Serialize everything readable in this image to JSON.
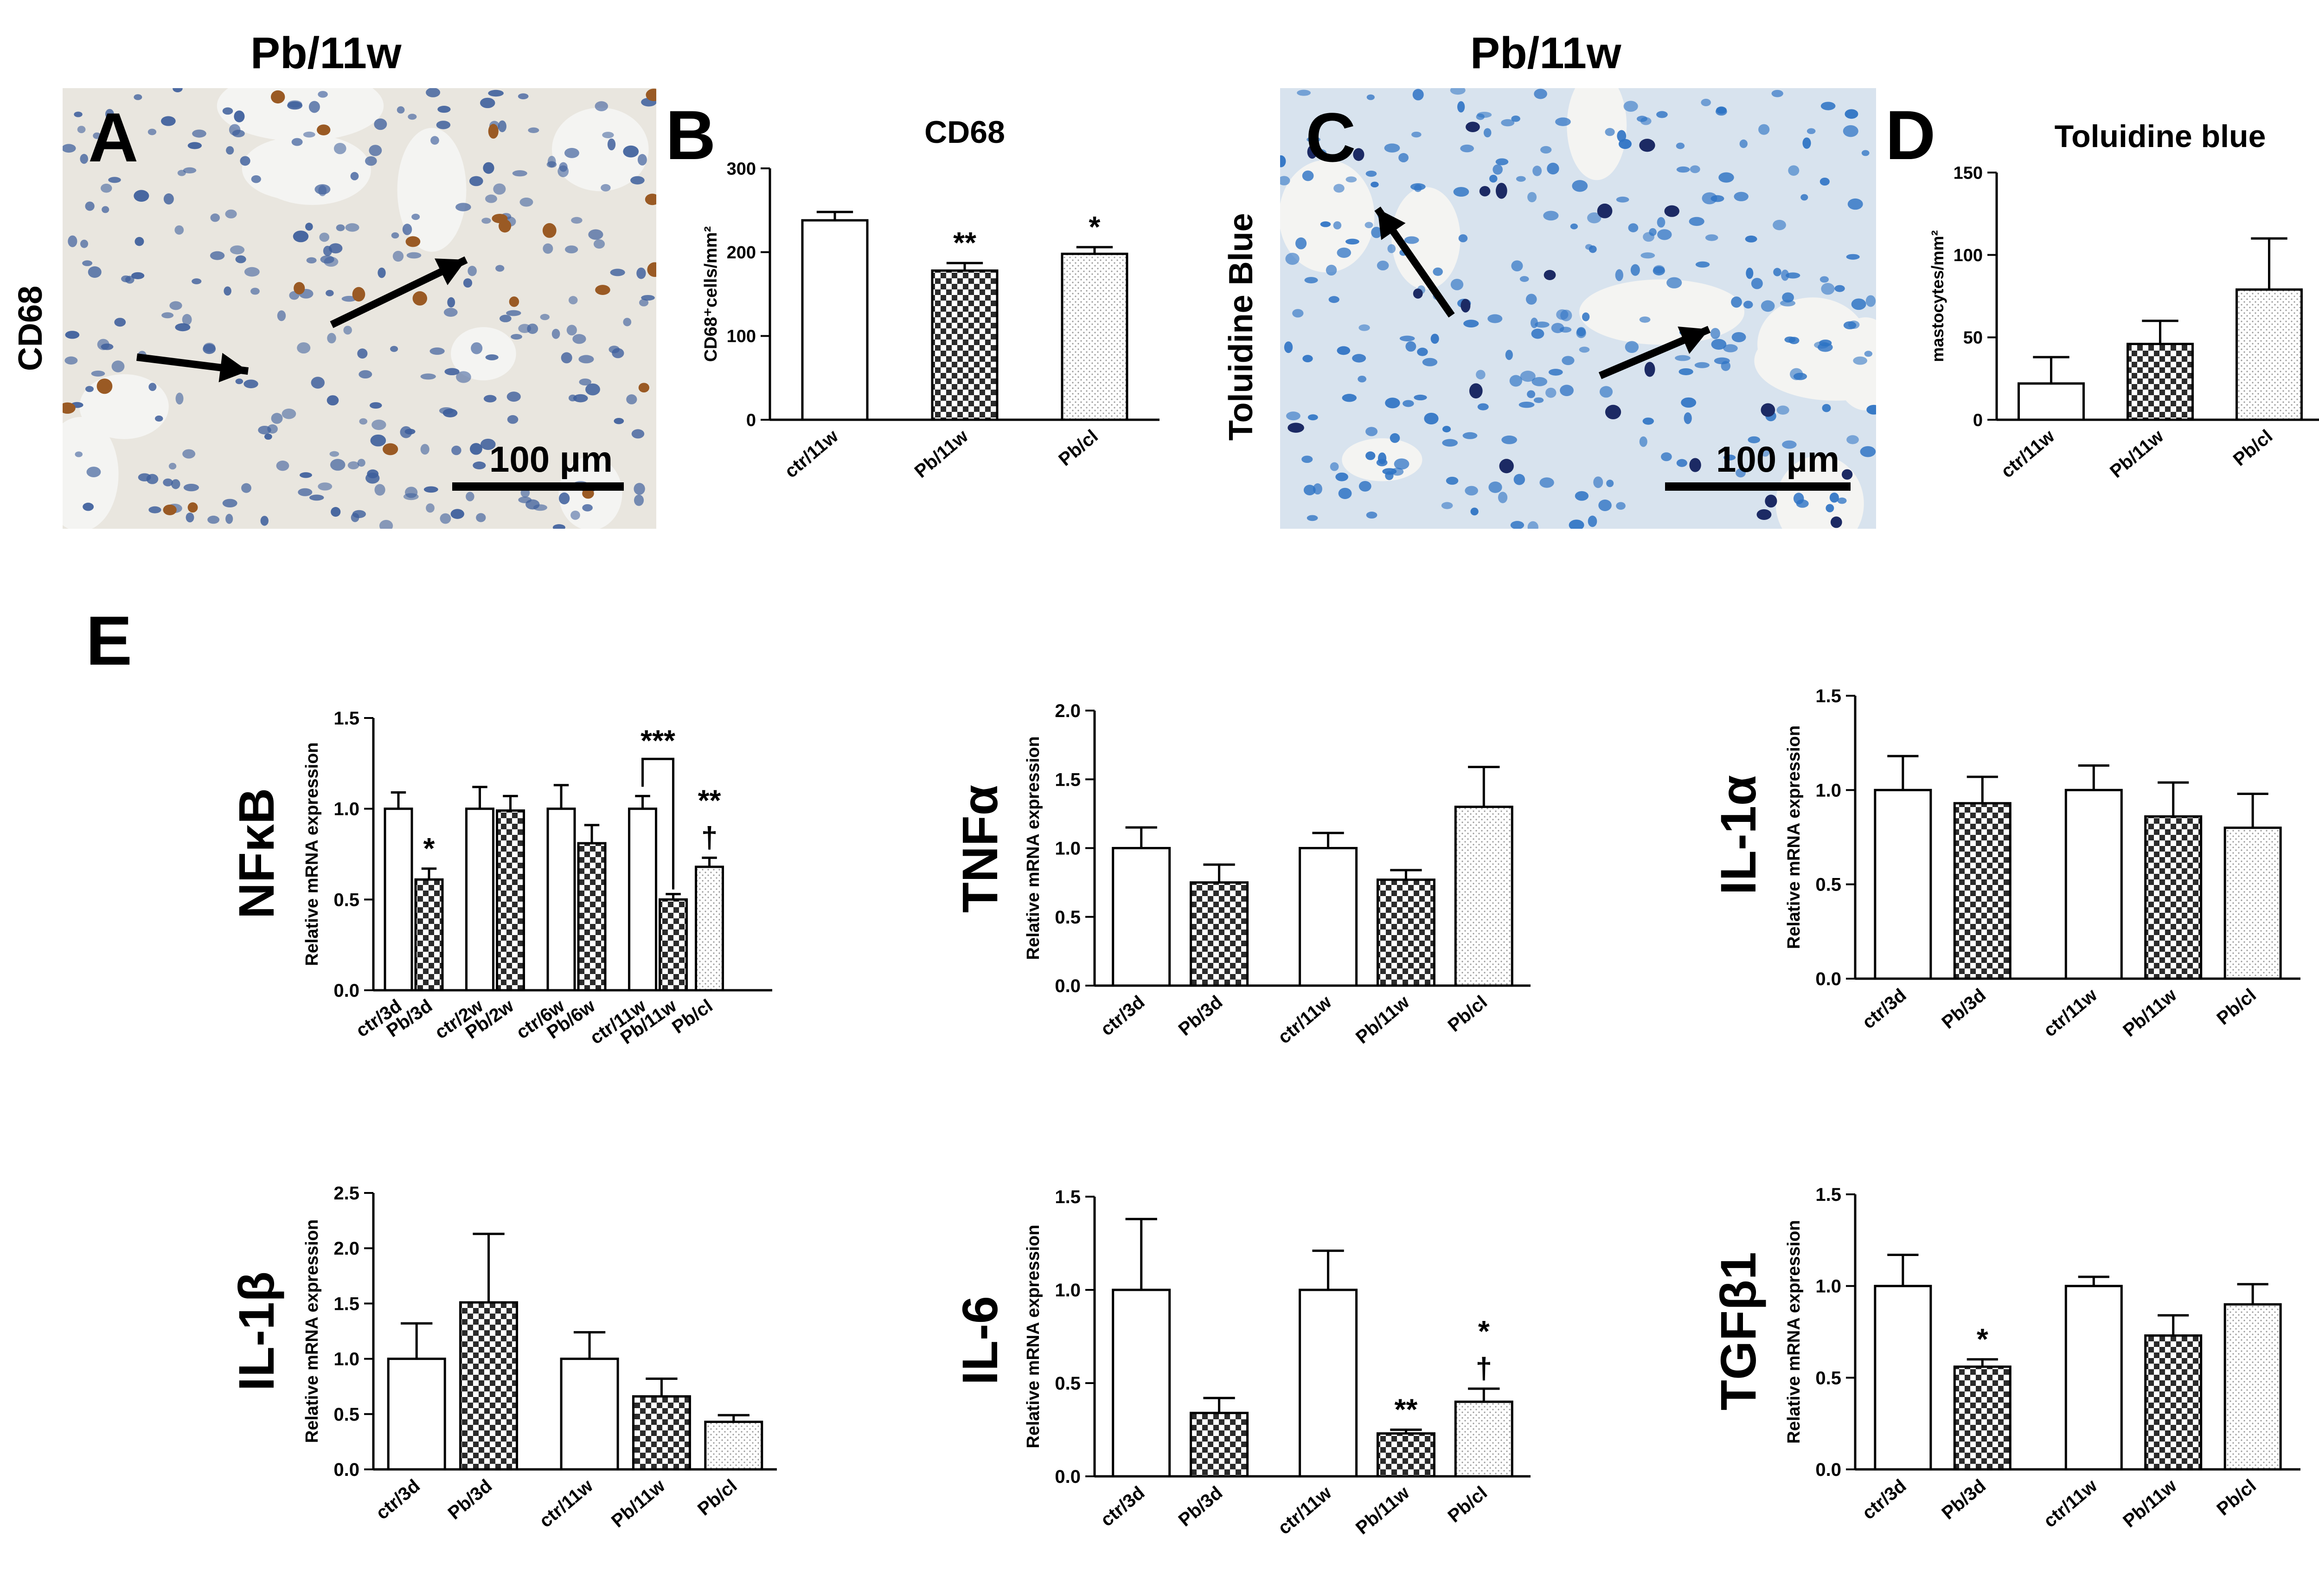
{
  "figure": {
    "title_left": "Pb/11w",
    "title_right": "Pb/11w",
    "panel_letters": {
      "A": "A",
      "B": "B",
      "C": "C",
      "D": "D",
      "E": "E"
    },
    "micro_A": {
      "side_label": "CD68",
      "scale_label": "100 µm",
      "stain_bg": "#e9e6df",
      "nuclei": "#3e5f9c",
      "stained": "#9a5a24"
    },
    "micro_C": {
      "side_label": "Toluidine Blue",
      "scale_label": "100 µm",
      "stain_bg": "#d8e3ee",
      "nuclei": "#2e73c4",
      "stained": "#1c2a64"
    }
  },
  "colors": {
    "axis": "#000000",
    "open": "#ffffff",
    "check": "#2b2b2b",
    "dot": "#9a9a9a"
  },
  "chart_data": [
    {
      "id": "B",
      "type": "bar",
      "title": "CD68",
      "ylabel": "CD68⁺cells/mm²",
      "ylim": [
        0,
        300
      ],
      "yticks": [
        0,
        100,
        200,
        300
      ],
      "tick_labels": [
        "0",
        "100",
        "200",
        "300"
      ],
      "categories": [
        "ctr/11w",
        "Pb/11w",
        "Pb/cl"
      ],
      "values": [
        238,
        178,
        198
      ],
      "errors": [
        10,
        9,
        8
      ],
      "patterns": [
        "open",
        "check",
        "dot"
      ],
      "annotations": [
        {
          "bar": 1,
          "text": "**"
        },
        {
          "bar": 2,
          "text": "*"
        }
      ]
    },
    {
      "id": "D",
      "type": "bar",
      "title": "Toluidine blue",
      "ylabel": "mastocytes/mm²",
      "ylim": [
        0,
        150
      ],
      "yticks": [
        0,
        50,
        100,
        150
      ],
      "tick_labels": [
        "0",
        "50",
        "100",
        "150"
      ],
      "categories": [
        "ctr/11w",
        "Pb/11w",
        "Pb/cl"
      ],
      "values": [
        22,
        46,
        79
      ],
      "errors": [
        16,
        14,
        31
      ],
      "patterns": [
        "open",
        "check",
        "dot"
      ],
      "annotations": []
    },
    {
      "id": "NFkB",
      "type": "bar",
      "gene": "NFκB",
      "ylabel": "Relative mRNA expression",
      "ylim": [
        0,
        1.5
      ],
      "yticks": [
        0,
        0.5,
        1,
        1.5
      ],
      "tick_labels": [
        "0.0",
        "0.5",
        "1.0",
        "1.5"
      ],
      "categories": [
        "ctr/3d",
        "Pb/3d",
        "ctr/2w",
        "Pb/2w",
        "ctr/6w",
        "Pb/6w",
        "ctr/11w",
        "Pb/11w",
        "Pb/cl"
      ],
      "values": [
        1.0,
        0.61,
        1.0,
        0.99,
        1.0,
        0.81,
        1.0,
        0.5,
        0.68
      ],
      "errors": [
        0.09,
        0.06,
        0.12,
        0.08,
        0.13,
        0.1,
        0.07,
        0.03,
        0.05
      ],
      "patterns": [
        "open",
        "check",
        "open",
        "check",
        "open",
        "check",
        "open",
        "check",
        "dot"
      ],
      "annotations": [
        {
          "bar": 1,
          "text": "*"
        },
        {
          "bar": 8,
          "text": "†"
        },
        {
          "bar": 8,
          "text": "**"
        }
      ],
      "brackets": [
        {
          "from": 6,
          "to": 7,
          "text": "***"
        }
      ]
    },
    {
      "id": "TNFa",
      "type": "bar",
      "gene": "TNFα",
      "ylabel": "Relative mRNA expression",
      "ylim": [
        0,
        2.0
      ],
      "yticks": [
        0,
        0.5,
        1,
        1.5,
        2
      ],
      "tick_labels": [
        "0.0",
        "0.5",
        "1.0",
        "1.5",
        "2.0"
      ],
      "categories": [
        "ctr/3d",
        "Pb/3d",
        "ctr/11w",
        "Pb/11w",
        "Pb/cl"
      ],
      "values": [
        1.0,
        0.75,
        1.0,
        0.77,
        1.3
      ],
      "errors": [
        0.15,
        0.13,
        0.11,
        0.07,
        0.29
      ],
      "patterns": [
        "open",
        "check",
        "open",
        "check",
        "dot"
      ],
      "annotations": []
    },
    {
      "id": "IL1a",
      "type": "bar",
      "gene": "IL-1α",
      "ylabel": "Relative mRNA expression",
      "ylim": [
        0,
        1.5
      ],
      "yticks": [
        0,
        0.5,
        1,
        1.5
      ],
      "tick_labels": [
        "0.0",
        "0.5",
        "1.0",
        "1.5"
      ],
      "categories": [
        "ctr/3d",
        "Pb/3d",
        "ctr/11w",
        "Pb/11w",
        "Pb/cl"
      ],
      "values": [
        1.0,
        0.93,
        1.0,
        0.86,
        0.8
      ],
      "errors": [
        0.18,
        0.14,
        0.13,
        0.18,
        0.18
      ],
      "patterns": [
        "open",
        "check",
        "open",
        "check",
        "dot"
      ],
      "annotations": []
    },
    {
      "id": "IL1b",
      "type": "bar",
      "gene": "IL-1β",
      "ylabel": "Relative mRNA expression",
      "ylim": [
        0,
        2.5
      ],
      "yticks": [
        0,
        0.5,
        1,
        1.5,
        2,
        2.5
      ],
      "tick_labels": [
        "0.0",
        "0.5",
        "1.0",
        "1.5",
        "2.0",
        "2.5"
      ],
      "categories": [
        "ctr/3d",
        "Pb/3d",
        "ctr/11w",
        "Pb/11w",
        "Pb/cl"
      ],
      "values": [
        1.0,
        1.51,
        1.0,
        0.66,
        0.43
      ],
      "errors": [
        0.32,
        0.62,
        0.24,
        0.16,
        0.06
      ],
      "patterns": [
        "open",
        "check",
        "open",
        "check",
        "dot"
      ],
      "annotations": []
    },
    {
      "id": "IL6",
      "type": "bar",
      "gene": "IL-6",
      "ylabel": "Relative mRNA expression",
      "ylim": [
        0,
        1.5
      ],
      "yticks": [
        0,
        0.5,
        1,
        1.5
      ],
      "tick_labels": [
        "0.0",
        "0.5",
        "1.0",
        "1.5"
      ],
      "categories": [
        "ctr/3d",
        "Pb/3d",
        "ctr/11w",
        "Pb/11w",
        "Pb/cl"
      ],
      "values": [
        1.0,
        0.34,
        1.0,
        0.23,
        0.4
      ],
      "errors": [
        0.38,
        0.08,
        0.21,
        0.02,
        0.07
      ],
      "patterns": [
        "open",
        "check",
        "open",
        "check",
        "dot"
      ],
      "annotations": [
        {
          "bar": 3,
          "text": "**"
        },
        {
          "bar": 4,
          "text": "†"
        },
        {
          "bar": 4,
          "text": "*"
        }
      ]
    },
    {
      "id": "TGFb1",
      "type": "bar",
      "gene": "TGFβ1",
      "ylabel": "Relative mRNA expression",
      "ylim": [
        0,
        1.5
      ],
      "yticks": [
        0,
        0.5,
        1,
        1.5
      ],
      "tick_labels": [
        "0.0",
        "0.5",
        "1.0",
        "1.5"
      ],
      "categories": [
        "ctr/3d",
        "Pb/3d",
        "ctr/11w",
        "Pb/11w",
        "Pb/cl"
      ],
      "values": [
        1.0,
        0.56,
        1.0,
        0.73,
        0.9
      ],
      "errors": [
        0.17,
        0.04,
        0.05,
        0.11,
        0.11
      ],
      "patterns": [
        "open",
        "check",
        "open",
        "check",
        "dot"
      ],
      "annotations": [
        {
          "bar": 1,
          "text": "*"
        }
      ]
    }
  ]
}
